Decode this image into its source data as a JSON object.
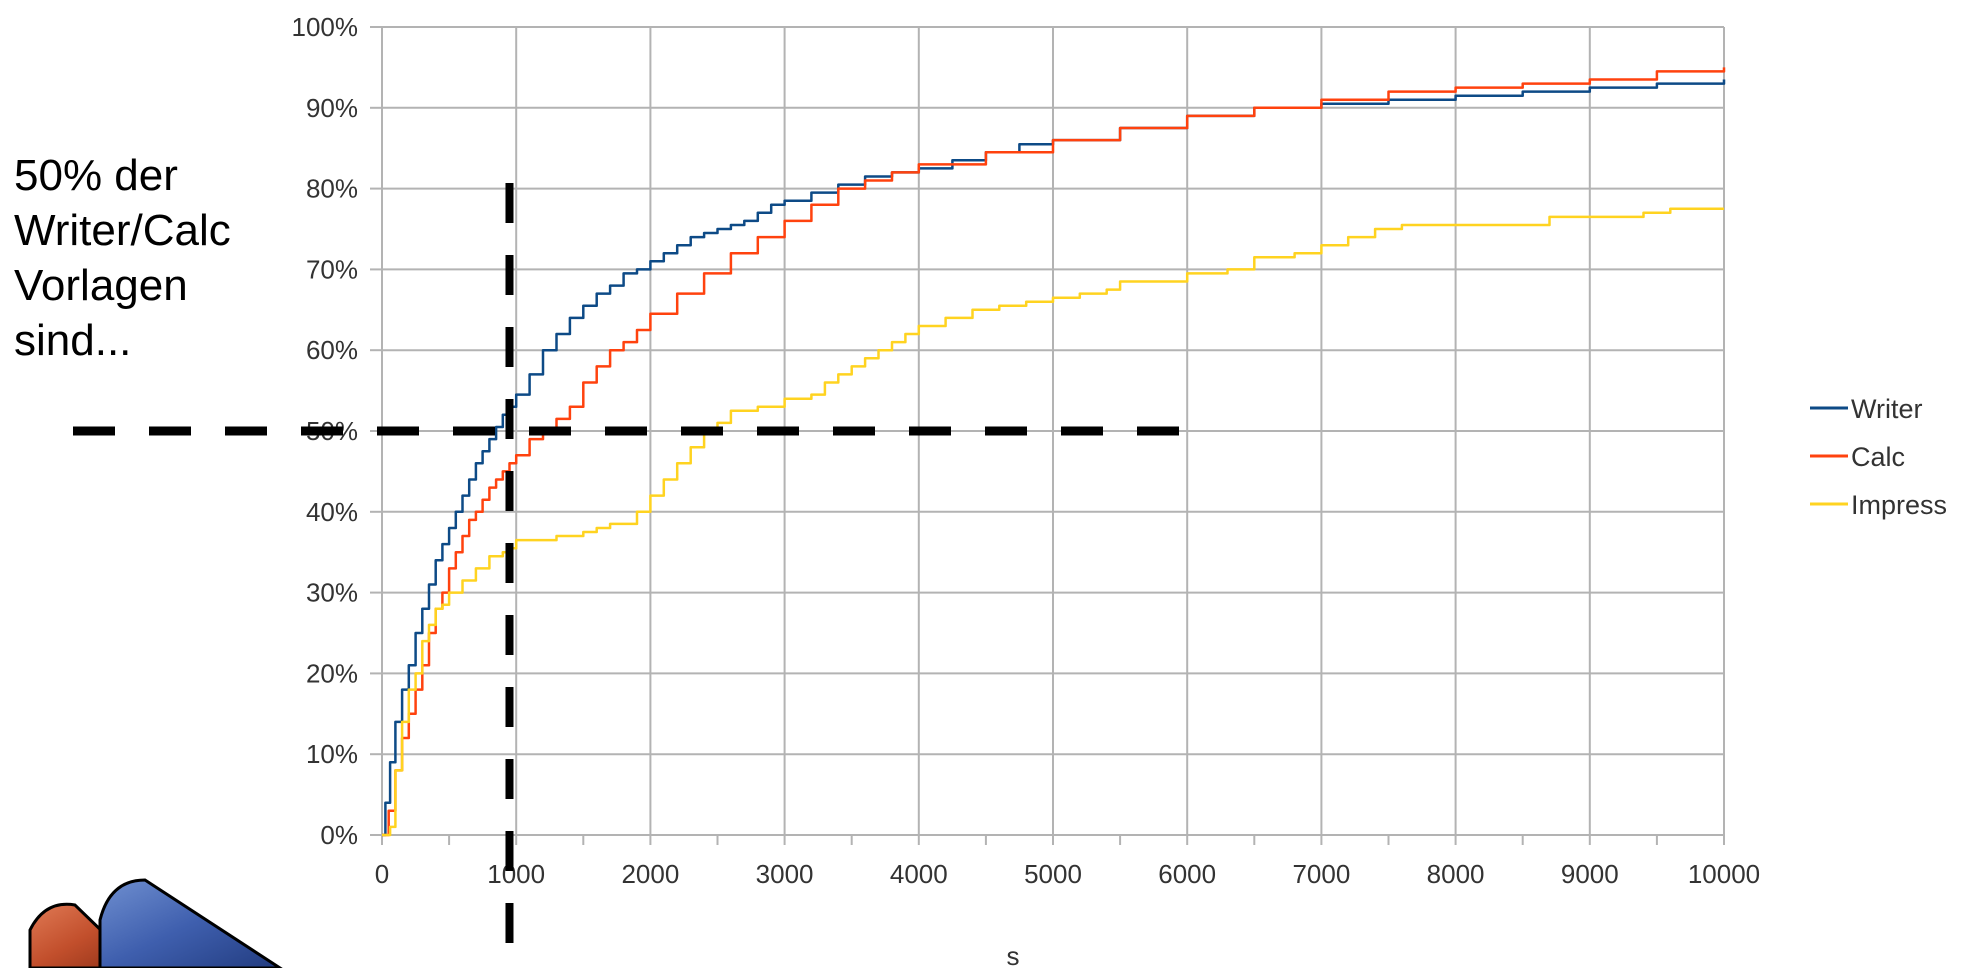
{
  "callout": {
    "lines": [
      "50% der",
      "Writer/Calc",
      "Vorlagen",
      "sind..."
    ]
  },
  "chart_data": {
    "type": "line",
    "title": "",
    "xlabel": "s",
    "ylabel": "",
    "xlim": [
      0,
      10000
    ],
    "ylim": [
      0,
      100
    ],
    "x_ticks": [
      0,
      1000,
      2000,
      3000,
      4000,
      5000,
      6000,
      7000,
      8000,
      9000,
      10000
    ],
    "x_tick_labels": [
      "0",
      "1000",
      "2000",
      "3000",
      "4000",
      "5000",
      "6000",
      "7000",
      "8000",
      "9000",
      "10000"
    ],
    "y_ticks": [
      0,
      10,
      20,
      30,
      40,
      50,
      60,
      70,
      80,
      90,
      100
    ],
    "y_tick_labels": [
      "0%",
      "10%",
      "20%",
      "30%",
      "40%",
      "50%",
      "60%",
      "70%",
      "80%",
      "90%",
      "100%"
    ],
    "grid": true,
    "legend_position": "right",
    "series": [
      {
        "name": "Writer",
        "color": "#0d4a86",
        "x": [
          0,
          25,
          60,
          100,
          150,
          200,
          250,
          300,
          350,
          400,
          450,
          500,
          550,
          600,
          650,
          700,
          750,
          800,
          850,
          900,
          950,
          1000,
          1100,
          1200,
          1300,
          1400,
          1500,
          1600,
          1700,
          1800,
          1900,
          2000,
          2100,
          2200,
          2300,
          2400,
          2500,
          2600,
          2700,
          2800,
          2900,
          3000,
          3200,
          3400,
          3600,
          3800,
          4000,
          4250,
          4500,
          4750,
          5000,
          5500,
          6000,
          6500,
          7000,
          7500,
          8000,
          8500,
          9000,
          9500,
          10000
        ],
        "y": [
          0,
          4,
          9,
          14,
          18,
          21,
          25,
          28,
          31,
          34,
          36,
          38,
          40,
          42,
          44,
          46,
          47.5,
          49,
          50.5,
          52,
          53,
          54.5,
          57,
          60,
          62,
          64,
          65.5,
          67,
          68,
          69.5,
          70,
          71,
          72,
          73,
          74,
          74.5,
          75,
          75.5,
          76,
          77,
          78,
          78.5,
          79.5,
          80.5,
          81.5,
          82,
          82.5,
          83.5,
          84.5,
          85.5,
          86,
          87.5,
          89,
          90,
          90.5,
          91,
          91.5,
          92,
          92.5,
          93,
          93.5
        ]
      },
      {
        "name": "Calc",
        "color": "#ff420e",
        "x": [
          0,
          50,
          100,
          150,
          200,
          250,
          300,
          350,
          400,
          450,
          500,
          550,
          600,
          650,
          700,
          750,
          800,
          850,
          900,
          950,
          1000,
          1100,
          1200,
          1300,
          1400,
          1500,
          1600,
          1700,
          1800,
          1900,
          2000,
          2200,
          2400,
          2600,
          2800,
          3000,
          3200,
          3400,
          3600,
          3800,
          4000,
          4500,
          5000,
          5500,
          6000,
          6500,
          7000,
          7500,
          8000,
          8500,
          9000,
          9500,
          10000
        ],
        "y": [
          0,
          3,
          8,
          12,
          15,
          18,
          21,
          25,
          28,
          30,
          33,
          35,
          37,
          39,
          40,
          41.5,
          43,
          44,
          45,
          46,
          47,
          49,
          50,
          51.5,
          53,
          56,
          58,
          60,
          61,
          62.5,
          64.5,
          67,
          69.5,
          72,
          74,
          76,
          78,
          80,
          81,
          82,
          83,
          84.5,
          86,
          87.5,
          89,
          90,
          91,
          92,
          92.5,
          93,
          93.5,
          94.5,
          95
        ]
      },
      {
        "name": "Impress",
        "color": "#ffd320",
        "x": [
          0,
          60,
          100,
          150,
          200,
          250,
          300,
          350,
          400,
          450,
          500,
          600,
          700,
          800,
          900,
          950,
          1000,
          1100,
          1200,
          1300,
          1400,
          1500,
          1600,
          1700,
          1800,
          1900,
          2000,
          2100,
          2200,
          2300,
          2400,
          2500,
          2600,
          2800,
          3000,
          3200,
          3300,
          3400,
          3500,
          3600,
          3700,
          3800,
          3900,
          4000,
          4200,
          4400,
          4600,
          4800,
          5000,
          5200,
          5400,
          5500,
          6000,
          6300,
          6500,
          6800,
          7000,
          7200,
          7400,
          7600,
          8000,
          8400,
          8700,
          8800,
          9000,
          9400,
          9600,
          10000
        ],
        "y": [
          0,
          1,
          8,
          14,
          18,
          20,
          24,
          26,
          28,
          28.5,
          30,
          31.5,
          33,
          34.5,
          35,
          35.5,
          36.5,
          36.5,
          36.5,
          37,
          37,
          37.5,
          38,
          38.5,
          38.5,
          40,
          42,
          44,
          46,
          48,
          50,
          51,
          52.5,
          53,
          54,
          54.5,
          56,
          57,
          58,
          59,
          60,
          61,
          62,
          63,
          64,
          65,
          65.5,
          66,
          66.5,
          67,
          67.5,
          68.5,
          69.5,
          70,
          71.5,
          72,
          73,
          74,
          75,
          75.5,
          75.5,
          75.5,
          76.5,
          76.5,
          76.5,
          77,
          77.5,
          77.5
        ]
      }
    ],
    "annotations": {
      "horizontal_dashed_y": 50,
      "vertical_dashed_x": 950
    }
  }
}
